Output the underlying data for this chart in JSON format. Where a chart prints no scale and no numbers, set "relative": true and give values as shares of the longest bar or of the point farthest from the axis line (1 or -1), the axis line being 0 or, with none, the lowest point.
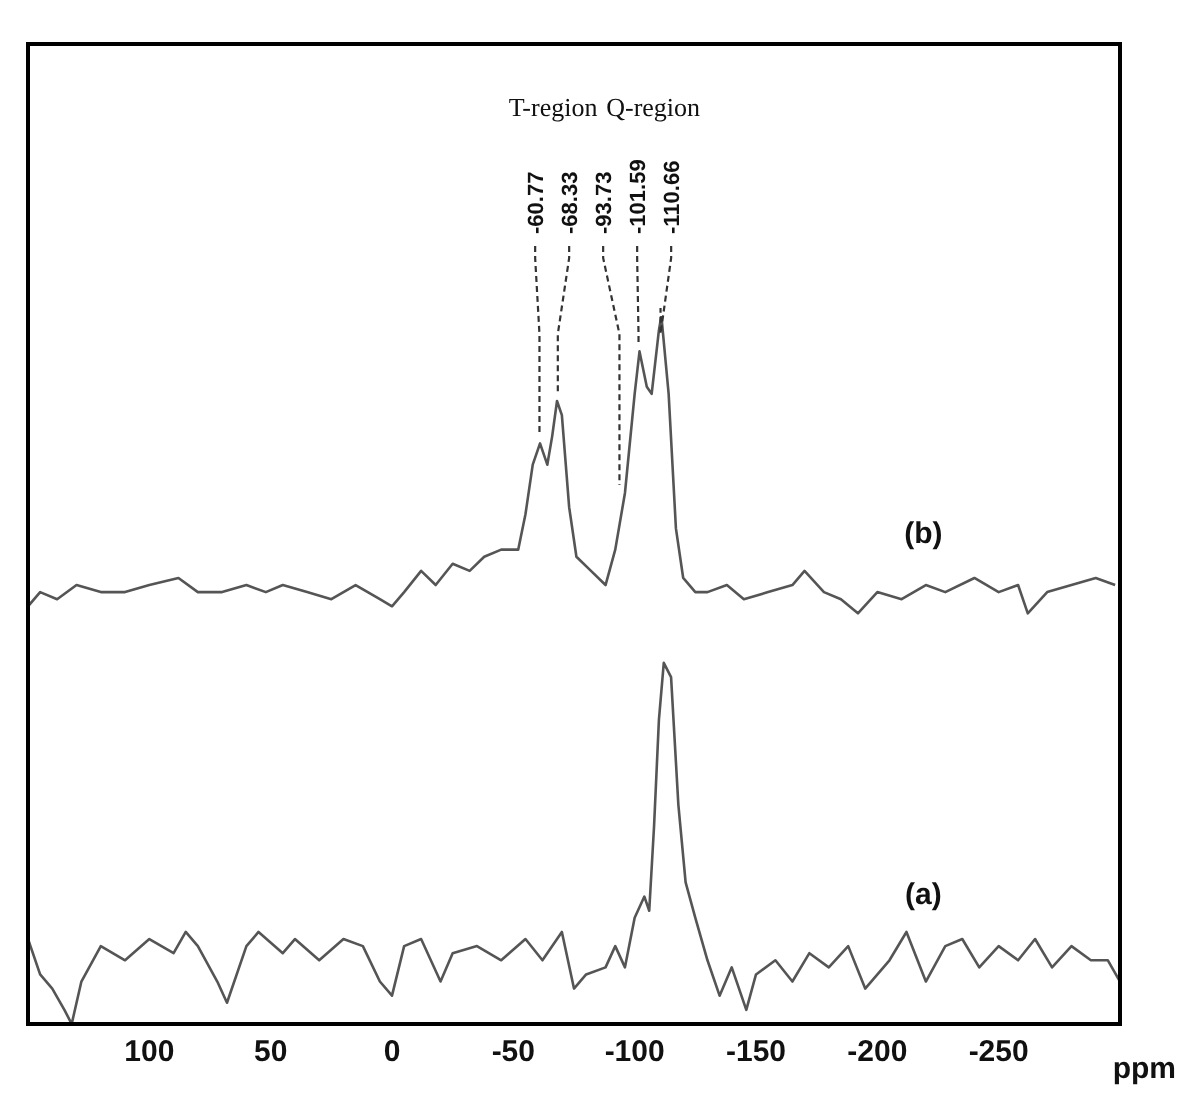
{
  "chart_data": {
    "type": "line",
    "relative": true,
    "xlabel": "ppm",
    "xlim": [
      150,
      -300
    ],
    "xticks": [
      100,
      50,
      0,
      -50,
      -100,
      -150,
      -200,
      -250
    ],
    "marker": "none",
    "line_style": "solid",
    "annotations": [
      "T-region",
      "Q-region",
      {
        "text": "-60.77",
        "x": -60.77,
        "y": 0.82
      },
      {
        "text": "-68.33",
        "x": -68.33,
        "y": 0.88
      },
      {
        "text": "-93.73",
        "x": -93.73,
        "y": 0.75
      },
      {
        "text": "-101.59",
        "x": -101.59,
        "y": 0.95
      },
      {
        "text": "-110.66",
        "x": -110.66,
        "y": 1
      }
    ],
    "series": [
      {
        "name": "(b)",
        "color": "#555555",
        "x": [
          150,
          145,
          138,
          130,
          120,
          110,
          100,
          88,
          80,
          70,
          60,
          52,
          45,
          35,
          25,
          15,
          5,
          0,
          -5,
          -12,
          -18,
          -25,
          -32,
          -38,
          -45,
          -52,
          -55,
          -58,
          -61,
          -64,
          -66,
          -68,
          -70,
          -73,
          -76,
          -82,
          -88,
          -92,
          -96,
          -100,
          -102,
          -105,
          -107,
          -110,
          -111,
          -114,
          -117,
          -120,
          -125,
          -130,
          -138,
          -145,
          -155,
          -165,
          -170,
          -178,
          -185,
          -192,
          -200,
          -210,
          -220,
          -228,
          -240,
          -250,
          -258,
          -262,
          -270,
          -280,
          -290,
          -298
        ],
        "values": [
          0.59,
          0.61,
          0.6,
          0.62,
          0.61,
          0.61,
          0.62,
          0.63,
          0.61,
          0.61,
          0.62,
          0.61,
          0.62,
          0.61,
          0.6,
          0.62,
          0.6,
          0.59,
          0.61,
          0.64,
          0.62,
          0.65,
          0.64,
          0.66,
          0.67,
          0.67,
          0.72,
          0.79,
          0.82,
          0.79,
          0.83,
          0.88,
          0.86,
          0.73,
          0.66,
          0.64,
          0.62,
          0.67,
          0.75,
          0.89,
          0.95,
          0.9,
          0.89,
          0.98,
          1,
          0.89,
          0.7,
          0.63,
          0.61,
          0.61,
          0.62,
          0.6,
          0.61,
          0.62,
          0.64,
          0.61,
          0.6,
          0.58,
          0.61,
          0.6,
          0.62,
          0.61,
          0.63,
          0.61,
          0.62,
          0.58,
          0.61,
          0.62,
          0.63,
          0.62
        ]
      },
      {
        "name": "(a)",
        "color": "#555555",
        "x": [
          150,
          145,
          140,
          135,
          132,
          128,
          120,
          110,
          100,
          90,
          85,
          80,
          72,
          68,
          60,
          55,
          45,
          40,
          30,
          20,
          12,
          5,
          0,
          -5,
          -12,
          -20,
          -25,
          -35,
          -45,
          -55,
          -62,
          -70,
          -75,
          -80,
          -88,
          -92,
          -96,
          -100,
          -104,
          -106,
          -108,
          -110,
          -112,
          -115,
          -118,
          -121,
          -125,
          -130,
          -135,
          -140,
          -146,
          -150,
          -158,
          -165,
          -172,
          -180,
          -188,
          -195,
          -205,
          -212,
          -220,
          -228,
          -235,
          -242,
          -250,
          -258,
          -265,
          -272,
          -280,
          -288,
          -295,
          -300
        ],
        "values": [
          0.12,
          0.07,
          0.05,
          0.02,
          0,
          0.06,
          0.11,
          0.09,
          0.12,
          0.1,
          0.13,
          0.11,
          0.06,
          0.03,
          0.11,
          0.13,
          0.1,
          0.12,
          0.09,
          0.12,
          0.11,
          0.06,
          0.04,
          0.11,
          0.12,
          0.06,
          0.1,
          0.11,
          0.09,
          0.12,
          0.09,
          0.13,
          0.05,
          0.07,
          0.08,
          0.11,
          0.08,
          0.15,
          0.18,
          0.16,
          0.28,
          0.43,
          0.51,
          0.49,
          0.31,
          0.2,
          0.15,
          0.09,
          0.04,
          0.08,
          0.02,
          0.07,
          0.09,
          0.06,
          0.1,
          0.08,
          0.11,
          0.05,
          0.09,
          0.13,
          0.06,
          0.11,
          0.12,
          0.08,
          0.11,
          0.09,
          0.12,
          0.08,
          0.11,
          0.09,
          0.09,
          0.06
        ]
      }
    ]
  }
}
